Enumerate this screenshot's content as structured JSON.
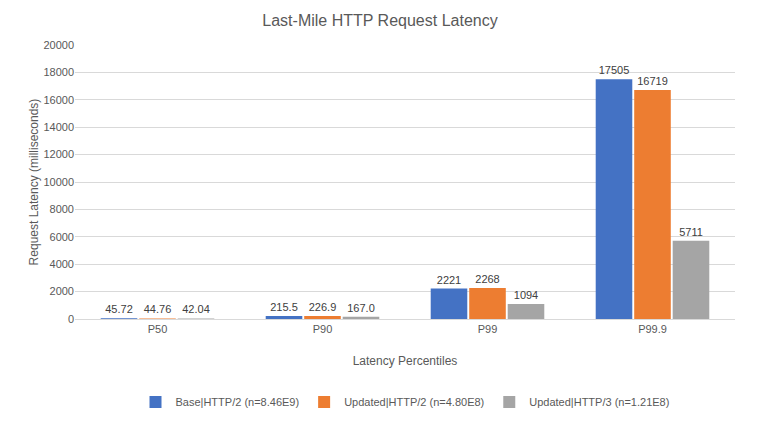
{
  "chart_data": {
    "type": "bar",
    "title": "Last-Mile HTTP Request Latency",
    "x_label": "Latency Percentiles",
    "y_label": "Request Latency (milliseconds)",
    "categories": [
      "P50",
      "P90",
      "P99",
      "P99.9"
    ],
    "series": [
      {
        "name": "Base|HTTP/2 (n=8.46E9)",
        "color": "#4472c4",
        "values": [
          45.72,
          215.5,
          2221,
          17505
        ],
        "value_labels": [
          "45.72",
          "215.5",
          "2221",
          "17505"
        ]
      },
      {
        "name": "Updated|HTTP/2 (n=4.80E8)",
        "color": "#ed7d31",
        "values": [
          44.76,
          226.9,
          2268,
          16719
        ],
        "value_labels": [
          "44.76",
          "226.9",
          "2268",
          "16719"
        ]
      },
      {
        "name": "Updated|HTTP/3 (n=1.21E8)",
        "color": "#a5a5a5",
        "values": [
          42.04,
          167.0,
          1094,
          5711
        ],
        "value_labels": [
          "42.04",
          "167.0",
          "1094",
          "5711"
        ]
      }
    ],
    "ylim": [
      0,
      20000
    ],
    "yticks": [
      0,
      2000,
      4000,
      6000,
      8000,
      10000,
      12000,
      14000,
      16000,
      18000,
      20000
    ],
    "grid": true,
    "legend": "bottom",
    "data_labels": true
  }
}
